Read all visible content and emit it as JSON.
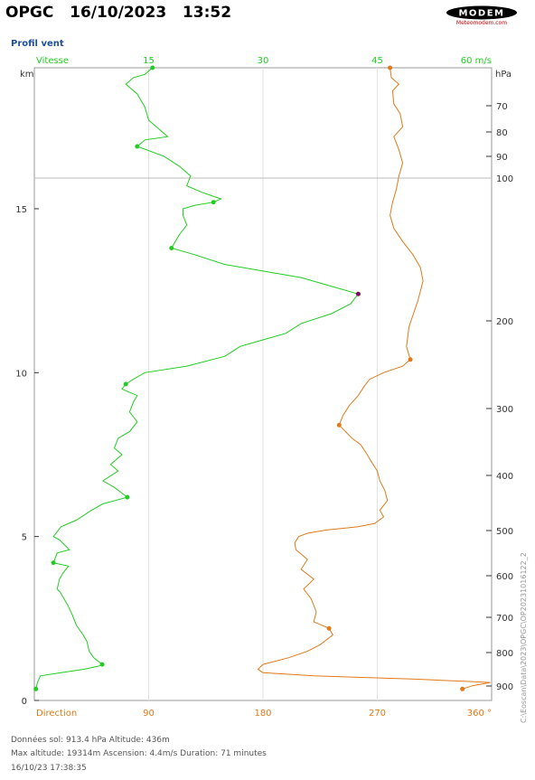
{
  "header": {
    "station": "OPGC",
    "date": "16/10/2023",
    "time": "13:52",
    "logo_text": "MODEM",
    "logo_subtext": "Meteomodem.com"
  },
  "section_title": "Profil vent",
  "footer": {
    "line1": "Données sol: 913.4 hPa   Altitude: 436m",
    "line2": "Max altitude: 19314m     Ascension: 4.4m/s     Duration: 71 minutes",
    "line3": "16/10/23 17:38:35"
  },
  "side_label": "C:\\Eoscan\\Data\\2023\\OPGC\\OP20231016122_2",
  "colors": {
    "speed": "#22cc22",
    "direction": "#e07a1a",
    "max_point": "#7a0a5a",
    "axis_blue": "#333333"
  },
  "chart_data": [
    {
      "type": "line",
      "title": "Profil vent",
      "x_axis_top": {
        "label": "Vitesse",
        "unit": "60 m/s",
        "ticks": [
          15,
          30,
          45
        ],
        "lim": [
          0,
          60
        ]
      },
      "x_axis_bottom": {
        "label": "Direction",
        "unit": "360 °",
        "ticks": [
          90,
          180,
          270
        ],
        "lim": [
          0,
          360
        ]
      },
      "y_axis_left": {
        "label": "km",
        "ticks": [
          0,
          5,
          10,
          15
        ],
        "lim": [
          0,
          19.3
        ]
      },
      "y_axis_right": {
        "label": "hPa",
        "ticks": [
          70,
          80,
          90,
          100,
          200,
          300,
          400,
          500,
          600,
          700,
          800,
          900
        ]
      },
      "grid": true,
      "series": [
        {
          "name": "Vitesse",
          "x_label": "m/s",
          "points": [
            [
              0.2,
              0.35
            ],
            [
              0.4,
              0.55
            ],
            [
              0.8,
              0.75
            ],
            [
              3.5,
              0.85
            ],
            [
              6.5,
              0.95
            ],
            [
              8.5,
              1.05
            ],
            [
              8.9,
              1.1
            ],
            [
              7.8,
              1.3
            ],
            [
              7.2,
              1.5
            ],
            [
              6.9,
              1.8
            ],
            [
              6.4,
              2.0
            ],
            [
              5.5,
              2.3
            ],
            [
              5.0,
              2.6
            ],
            [
              4.4,
              2.9
            ],
            [
              3.9,
              3.1
            ],
            [
              3.4,
              3.3
            ],
            [
              3.0,
              3.4
            ],
            [
              3.3,
              3.7
            ],
            [
              3.8,
              3.9
            ],
            [
              4.5,
              4.1
            ],
            [
              2.5,
              4.2
            ],
            [
              3.0,
              4.5
            ],
            [
              4.6,
              4.6
            ],
            [
              3.3,
              4.9
            ],
            [
              2.5,
              5.0
            ],
            [
              3.5,
              5.3
            ],
            [
              5.5,
              5.5
            ],
            [
              7.5,
              5.8
            ],
            [
              9.0,
              6.0
            ],
            [
              12.2,
              6.2
            ],
            [
              10.5,
              6.5
            ],
            [
              9.0,
              6.7
            ],
            [
              11.0,
              7.0
            ],
            [
              10.0,
              7.2
            ],
            [
              11.5,
              7.5
            ],
            [
              10.5,
              7.7
            ],
            [
              11.0,
              8.0
            ],
            [
              12.5,
              8.2
            ],
            [
              13.5,
              8.5
            ],
            [
              12.5,
              8.8
            ],
            [
              13.0,
              9.1
            ],
            [
              13.5,
              9.3
            ],
            [
              11.5,
              9.5
            ],
            [
              12.0,
              9.65
            ],
            [
              13.0,
              9.8
            ],
            [
              14.5,
              10.0
            ],
            [
              20.0,
              10.2
            ],
            [
              25.0,
              10.5
            ],
            [
              27.0,
              10.8
            ],
            [
              30.0,
              11.0
            ],
            [
              33.0,
              11.2
            ],
            [
              35.0,
              11.5
            ],
            [
              39.0,
              11.8
            ],
            [
              41.5,
              12.1
            ],
            [
              42.5,
              12.4
            ],
            [
              39.5,
              12.6
            ],
            [
              35.0,
              12.9
            ],
            [
              30.0,
              13.1
            ],
            [
              25.0,
              13.3
            ],
            [
              21.0,
              13.6
            ],
            [
              18.0,
              13.8
            ],
            [
              19.0,
              14.2
            ],
            [
              20.0,
              14.5
            ],
            [
              19.5,
              14.8
            ],
            [
              19.5,
              15.0
            ],
            [
              21.0,
              15.1
            ],
            [
              23.5,
              15.2
            ],
            [
              24.5,
              15.3
            ],
            [
              22.0,
              15.5
            ],
            [
              20.0,
              15.7
            ],
            [
              20.5,
              16.0
            ],
            [
              19.0,
              16.3
            ],
            [
              17.0,
              16.6
            ],
            [
              13.5,
              16.9
            ],
            [
              14.5,
              17.1
            ],
            [
              17.5,
              17.2
            ],
            [
              16.5,
              17.4
            ],
            [
              15.0,
              17.7
            ],
            [
              14.5,
              18.1
            ],
            [
              13.5,
              18.5
            ],
            [
              12.0,
              18.8
            ],
            [
              13.0,
              19.0
            ],
            [
              14.5,
              19.1
            ],
            [
              15.5,
              19.3
            ]
          ],
          "markers": [
            [
              0.2,
              0.35
            ],
            [
              8.9,
              1.1
            ],
            [
              12.2,
              6.2
            ],
            [
              2.5,
              4.2
            ],
            [
              12.0,
              9.65
            ],
            [
              42.5,
              12.4
            ],
            [
              18.0,
              13.8
            ],
            [
              23.5,
              15.2
            ],
            [
              13.5,
              16.9
            ],
            [
              15.5,
              19.3
            ]
          ],
          "max_point": [
            42.5,
            12.4
          ]
        },
        {
          "name": "Direction",
          "x_label": "deg",
          "points": [
            [
              337,
              0.35
            ],
            [
              345,
              0.45
            ],
            [
              352,
              0.5
            ],
            [
              359,
              0.55
            ],
            [
              300,
              0.65
            ],
            [
              220,
              0.75
            ],
            [
              180,
              0.85
            ],
            [
              176,
              0.95
            ],
            [
              180,
              1.1
            ],
            [
              200,
              1.3
            ],
            [
              215,
              1.5
            ],
            [
              225,
              1.7
            ],
            [
              235,
              2.0
            ],
            [
              232,
              2.2
            ],
            [
              220,
              2.4
            ],
            [
              222,
              2.7
            ],
            [
              218,
              3.1
            ],
            [
              212,
              3.4
            ],
            [
              220,
              3.7
            ],
            [
              210,
              4.0
            ],
            [
              215,
              4.3
            ],
            [
              206,
              4.6
            ],
            [
              205,
              4.8
            ],
            [
              208,
              5.0
            ],
            [
              215,
              5.1
            ],
            [
              230,
              5.2
            ],
            [
              255,
              5.3
            ],
            [
              268,
              5.4
            ],
            [
              275,
              5.6
            ],
            [
              272,
              5.8
            ],
            [
              278,
              6.1
            ],
            [
              276,
              6.4
            ],
            [
              272,
              6.7
            ],
            [
              270,
              7.0
            ],
            [
              265,
              7.3
            ],
            [
              262,
              7.5
            ],
            [
              257,
              7.8
            ],
            [
              250,
              8.0
            ],
            [
              245,
              8.2
            ],
            [
              240,
              8.4
            ],
            [
              243,
              8.7
            ],
            [
              248,
              9.0
            ],
            [
              255,
              9.3
            ],
            [
              260,
              9.6
            ],
            [
              264,
              9.8
            ],
            [
              275,
              10.0
            ],
            [
              290,
              10.2
            ],
            [
              296,
              10.4
            ],
            [
              293,
              10.8
            ],
            [
              295,
              11.4
            ],
            [
              302,
              12.2
            ],
            [
              306,
              12.8
            ],
            [
              304,
              13.2
            ],
            [
              298,
              13.6
            ],
            [
              290,
              14.0
            ],
            [
              283,
              14.4
            ],
            [
              280,
              14.8
            ],
            [
              282,
              15.2
            ],
            [
              285,
              15.6
            ],
            [
              287,
              16.0
            ],
            [
              290,
              16.4
            ],
            [
              287,
              16.8
            ],
            [
              283,
              17.2
            ],
            [
              290,
              17.5
            ],
            [
              288,
              17.9
            ],
            [
              283,
              18.2
            ],
            [
              282,
              18.6
            ],
            [
              287,
              18.8
            ],
            [
              281,
              19.0
            ],
            [
              280,
              19.3
            ]
          ],
          "markers": [
            [
              337,
              0.35
            ],
            [
              232,
              2.2
            ],
            [
              240,
              8.4
            ],
            [
              296,
              10.4
            ],
            [
              280,
              19.3
            ]
          ]
        }
      ]
    }
  ]
}
